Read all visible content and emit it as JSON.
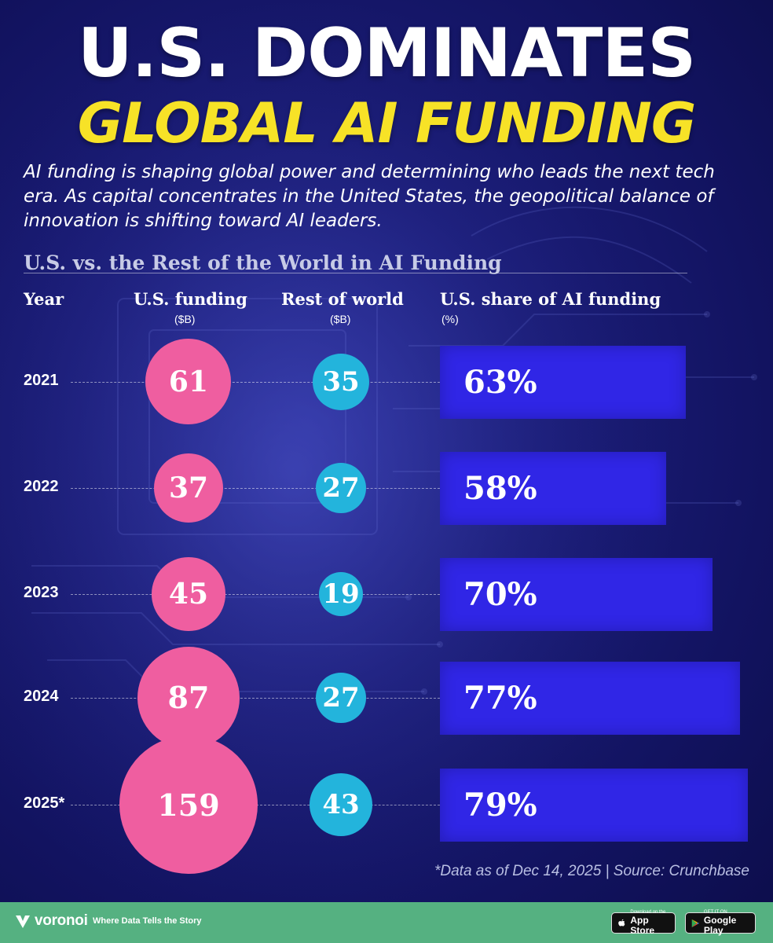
{
  "header": {
    "title_line1": "U.S. DOMINATES",
    "title_line2": "GLOBAL AI FUNDING",
    "subtitle": "AI funding is shaping global power and determining who leads the next tech era. As capital concentrates in the United States, the geopolitical balance of innovation is shifting toward AI leaders."
  },
  "chart_data": {
    "type": "table",
    "title": "U.S. vs. the Rest of the World in AI Funding",
    "columns": [
      {
        "key": "year",
        "label": "Year",
        "unit": ""
      },
      {
        "key": "us",
        "label": "U.S. funding",
        "unit": "($B)"
      },
      {
        "key": "row",
        "label": "Rest of world",
        "unit": "($B)"
      },
      {
        "key": "share",
        "label": "U.S. share of AI funding",
        "unit": "(%)"
      }
    ],
    "rows": [
      {
        "year": "2021",
        "us": 61,
        "row": 35,
        "share": 63,
        "us_label": "61",
        "row_label": "35",
        "share_label": "63%"
      },
      {
        "year": "2022",
        "us": 37,
        "row": 27,
        "share": 58,
        "us_label": "37",
        "row_label": "27",
        "share_label": "58%"
      },
      {
        "year": "2023",
        "us": 45,
        "row": 19,
        "share": 70,
        "us_label": "45",
        "row_label": "19",
        "share_label": "70%"
      },
      {
        "year": "2024",
        "us": 87,
        "row": 27,
        "share": 77,
        "us_label": "87",
        "row_label": "27",
        "share_label": "77%"
      },
      {
        "year": "2025*",
        "us": 159,
        "row": 43,
        "share": 79,
        "us_label": "159",
        "row_label": "43",
        "share_label": "79%"
      }
    ],
    "colors": {
      "us": "#ef5ea0",
      "row": "#23b4dc",
      "share": "#3026e6"
    }
  },
  "footnote": "*Data as of Dec 14, 2025 | Source: Crunchbase",
  "footer": {
    "brand": "voronoi",
    "tagline": "Where Data Tells the Story",
    "app_store_small": "Download on the",
    "app_store_big": "App Store",
    "play_small": "GET IT ON",
    "play_big": "Google Play",
    "brand_color": "#55b181"
  }
}
